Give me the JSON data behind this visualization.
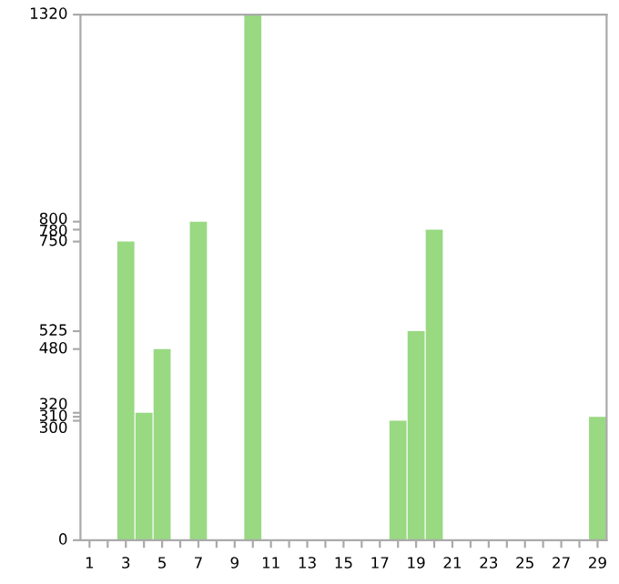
{
  "chart_data": {
    "type": "bar",
    "categories": [
      "1",
      null,
      "3",
      null,
      "5",
      null,
      "7",
      null,
      "9",
      null,
      "11",
      null,
      "13",
      null,
      "15",
      null,
      "17",
      null,
      "19",
      null,
      "21",
      null,
      "23",
      null,
      "25",
      null,
      "27",
      null,
      "29"
    ],
    "values": [
      0,
      0,
      750,
      320,
      480,
      0,
      800,
      0,
      0,
      1320,
      0,
      0,
      0,
      0,
      0,
      0,
      0,
      300,
      525,
      780,
      0,
      0,
      0,
      0,
      0,
      0,
      0,
      0,
      310
    ],
    "color": "#98d982",
    "ylim": [
      0,
      1320
    ],
    "yticks": [
      0,
      300,
      310,
      320,
      480,
      525,
      750,
      780,
      800,
      1320
    ],
    "grid": false
  }
}
